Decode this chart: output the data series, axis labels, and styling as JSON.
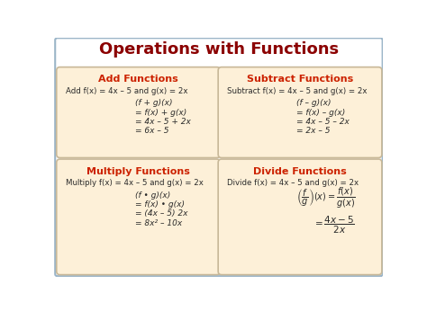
{
  "title": "Operations with Functions",
  "title_color": "#8B0000",
  "title_fontsize": 13,
  "bg_color": "#FFFFFF",
  "outer_border_color": "#9BB5C8",
  "box_bg_color": "#FDF0D8",
  "box_border_color": "#C8B898",
  "header_color": "#CC2200",
  "body_color": "#2a2a2a",
  "boxes": [
    {
      "header": "Add Functions",
      "intro": "Add f(x) = 4x – 5 and g(x) = 2x",
      "lines": [
        "(f + g)(x)",
        "= f(x) + g(x)",
        "= 4x – 5 + 2x",
        "= 6x – 5"
      ],
      "use_fraction": false
    },
    {
      "header": "Subtract Functions",
      "intro": "Subtract f(x) = 4x – 5 and g(x) = 2x",
      "lines": [
        "(f – g)(x)",
        "= f(x) – g(x)",
        "= 4x – 5 – 2x",
        "= 2x – 5"
      ],
      "use_fraction": false
    },
    {
      "header": "Multiply Functions",
      "intro": "Multiply f(x) = 4x – 5 and g(x) = 2x",
      "lines": [
        "(f • g)(x)",
        "= f(x) • g(x)",
        "= (4x – 5) 2x",
        "= 8x² – 10x"
      ],
      "use_fraction": false
    },
    {
      "header": "Divide Functions",
      "intro": "Divide f(x) = 4x – 5 and g(x) = 2x",
      "lines": [],
      "use_fraction": true
    }
  ]
}
